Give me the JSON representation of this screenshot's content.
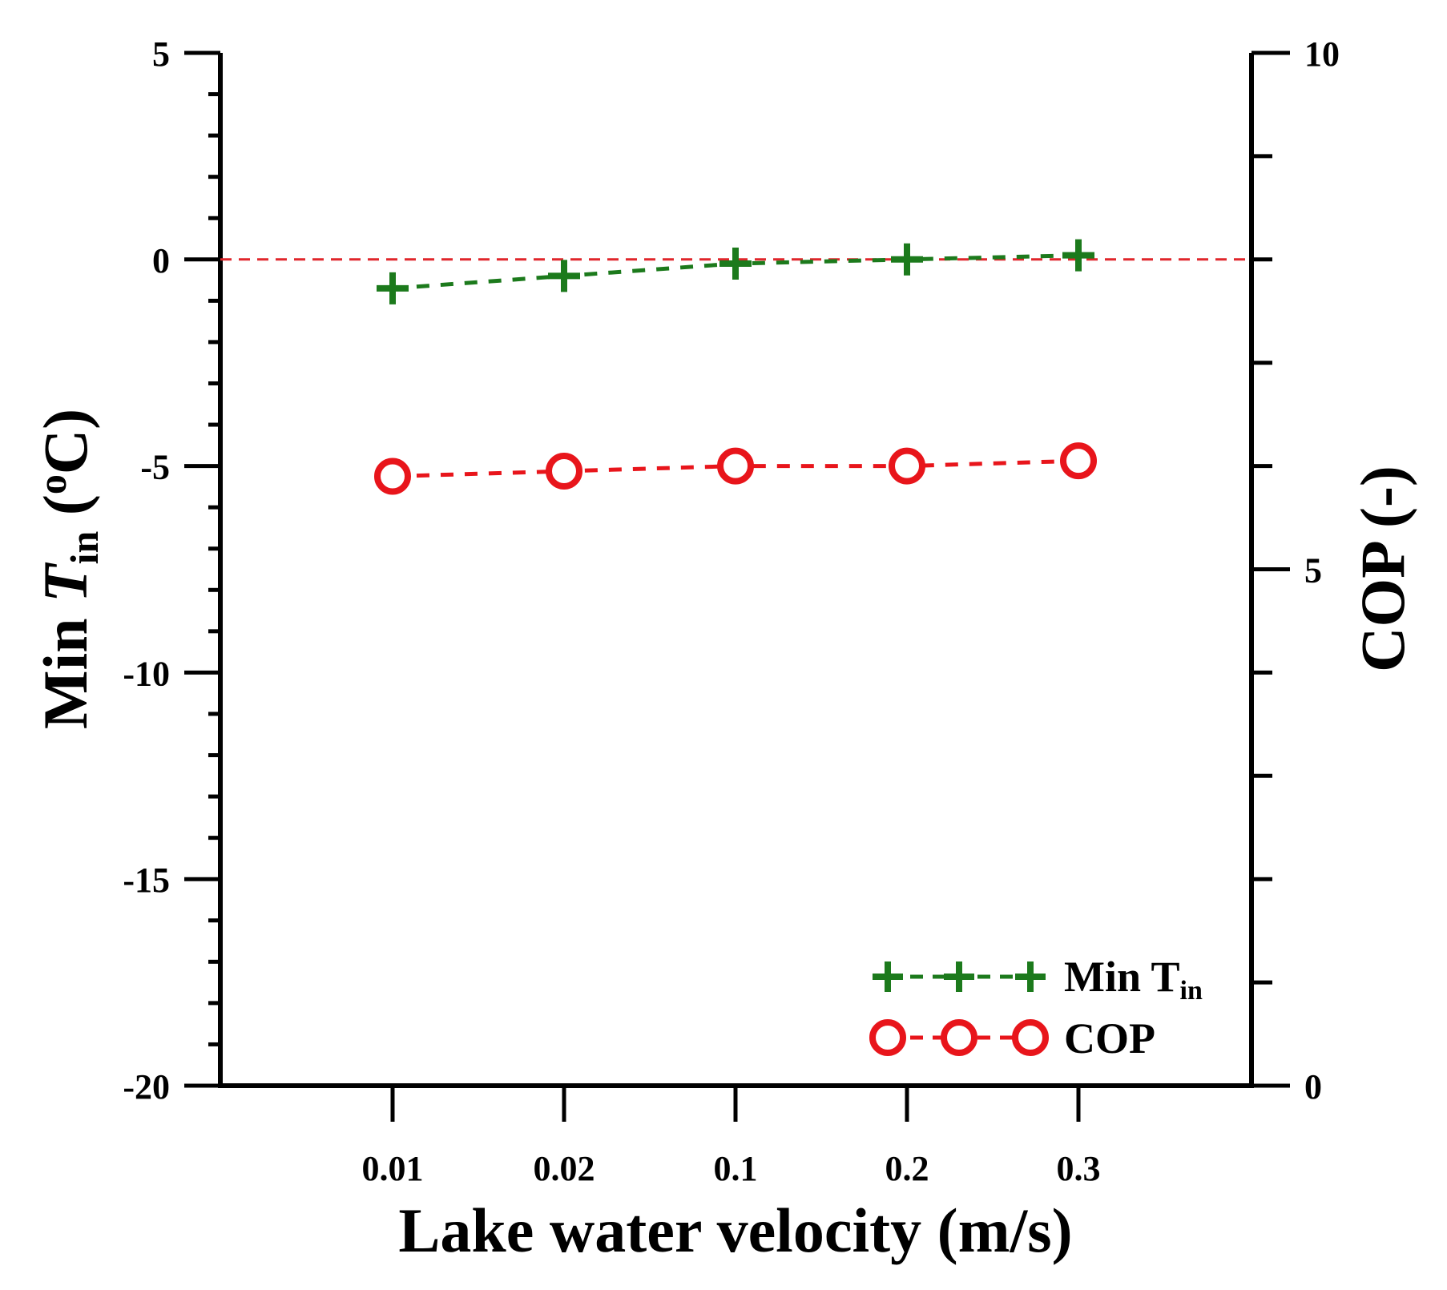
{
  "chart_data": {
    "type": "line",
    "title": "",
    "categories": [
      "0.01",
      "0.02",
      "0.1",
      "0.2",
      "0.3"
    ],
    "xlabel": "Lake water velocity (m/s)",
    "ylabel_left": {
      "main": "Min ",
      "italic": "T",
      "sub": "in",
      "unit_open": " (",
      "sup": "o",
      "unit_close": "C)"
    },
    "ylabel_right": "COP (-)",
    "ylim_left": [
      -20,
      5
    ],
    "ylim_right": [
      0,
      10
    ],
    "yticks_left": [
      "5",
      "0",
      "-5",
      "-10",
      "-15",
      "-20"
    ],
    "yticks_right": [
      "10",
      "5",
      "0"
    ],
    "reference_line": {
      "y": 0,
      "axis": "left",
      "style": "dashed",
      "color": "#e0262b"
    },
    "series": [
      {
        "name": "Min T",
        "name_sub": "in",
        "axis": "left",
        "marker": "plus",
        "line": "dashed",
        "color": "#1c7a1c",
        "values": [
          -0.7,
          -0.4,
          -0.1,
          0.0,
          0.1
        ]
      },
      {
        "name": "COP",
        "name_sub": "",
        "axis": "right",
        "marker": "circle-open",
        "line": "dashed",
        "color": "#e8151b",
        "values": [
          5.9,
          5.95,
          6.0,
          6.0,
          6.05
        ]
      }
    ],
    "legend": "bottom-right",
    "grid": false
  }
}
